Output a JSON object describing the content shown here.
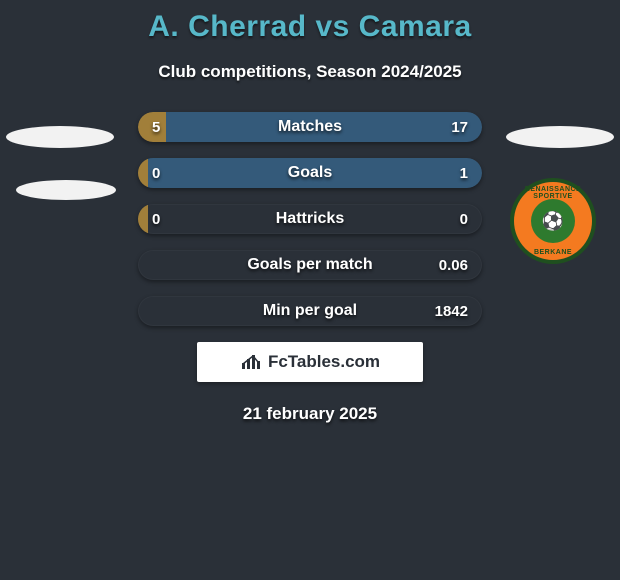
{
  "title": "A. Cherrad vs Camara",
  "subtitle": "Club competitions, Season 2024/2025",
  "date": "21 february 2025",
  "logo_text": "FcTables.com",
  "colors": {
    "background": "#2a3038",
    "title": "#57b8c9",
    "text": "#ffffff",
    "bar_left": "#a17f3a",
    "bar_right": "#345a7a",
    "badge": "#f2f2f2",
    "crest_outer": "#f47a20",
    "crest_border": "#1f4f1f",
    "crest_inner": "#2e7a2e"
  },
  "crest": {
    "top_text": "RENAISSANCE SPORTIVE",
    "bottom_text": "BERKANE"
  },
  "bars": {
    "bar_total_width": 344,
    "rows": [
      {
        "label": "Matches",
        "left_value": "5",
        "right_value": "17",
        "left_num": 5,
        "right_num": 17,
        "left_fill_pct": 8,
        "right_fill_pct": 92
      },
      {
        "label": "Goals",
        "left_value": "0",
        "right_value": "1",
        "left_num": 0,
        "right_num": 1,
        "left_fill_pct": 3,
        "right_fill_pct": 97
      },
      {
        "label": "Hattricks",
        "left_value": "0",
        "right_value": "0",
        "left_num": 0,
        "right_num": 0,
        "left_fill_pct": 3,
        "right_fill_pct": 0
      },
      {
        "label": "Goals per match",
        "left_value": "",
        "right_value": "0.06",
        "left_num": 0,
        "right_num": 0.06,
        "left_fill_pct": 0,
        "right_fill_pct": 0
      },
      {
        "label": "Min per goal",
        "left_value": "",
        "right_value": "1842",
        "left_num": 0,
        "right_num": 1842,
        "left_fill_pct": 0,
        "right_fill_pct": 0
      }
    ]
  }
}
